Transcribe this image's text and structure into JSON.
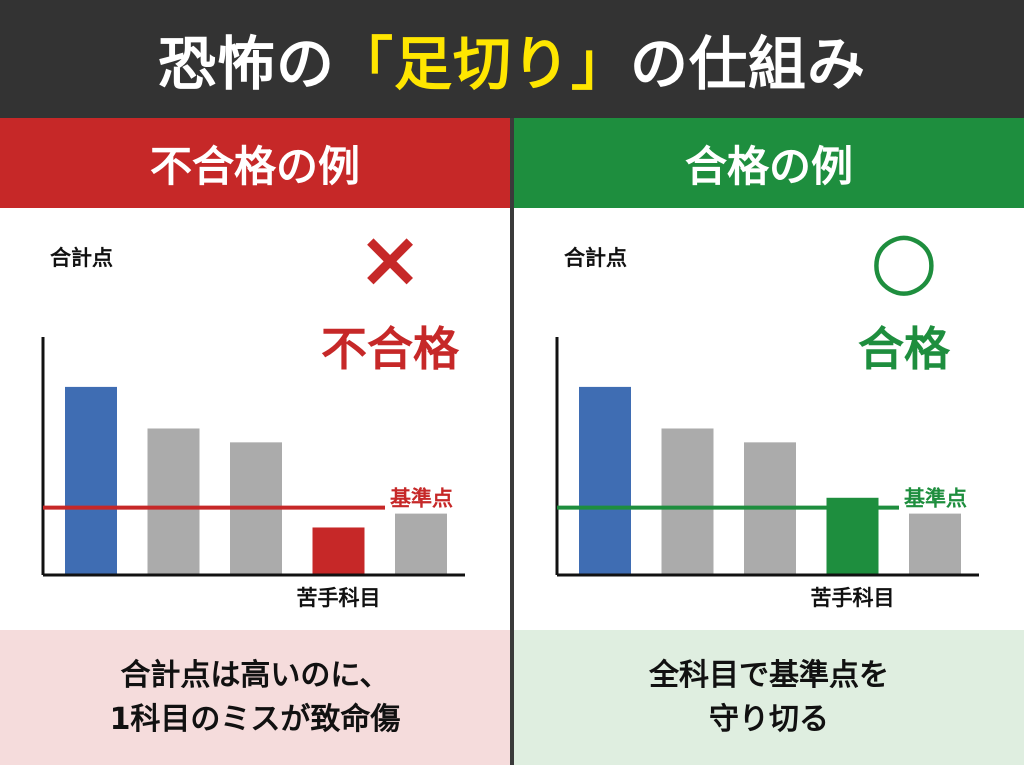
{
  "title": {
    "before": "恐怖の",
    "highlight": "「足切り」",
    "after": "の仕組み",
    "highlight_color": "#ffe600",
    "background": "#333333"
  },
  "chart_data": [
    {
      "type": "bar",
      "panel_title": "不合格の例",
      "theme_color": "#c62828",
      "footer_bg": "#f5dcdc",
      "ylabel": "合計点",
      "categories": [
        "",
        "",
        "",
        "苦手科目",
        ""
      ],
      "values": [
        95,
        74,
        67,
        24,
        31
      ],
      "ylim": [
        0,
        100
      ],
      "reference_line": {
        "label": "基準点",
        "value": 34
      },
      "bar_colors": [
        "#3f6db3",
        "#ababab",
        "#ababab",
        "#c62828",
        "#ababab"
      ],
      "verdict_mark": "×",
      "verdict_text": "不合格",
      "caption": [
        "合計点は高いのに、",
        "1科目のミスが致命傷"
      ]
    },
    {
      "type": "bar",
      "panel_title": "合格の例",
      "theme_color": "#1e8e3e",
      "footer_bg": "#dfeee0",
      "ylabel": "合計点",
      "categories": [
        "",
        "",
        "",
        "苦手科目",
        ""
      ],
      "values": [
        95,
        74,
        67,
        39,
        31
      ],
      "ylim": [
        0,
        100
      ],
      "reference_line": {
        "label": "基準点",
        "value": 34
      },
      "bar_colors": [
        "#3f6db3",
        "#ababab",
        "#ababab",
        "#1e8e3e",
        "#ababab"
      ],
      "verdict_mark": "○",
      "verdict_text": "合格",
      "caption": [
        "全科目で基準点を",
        "守り切る"
      ]
    }
  ]
}
